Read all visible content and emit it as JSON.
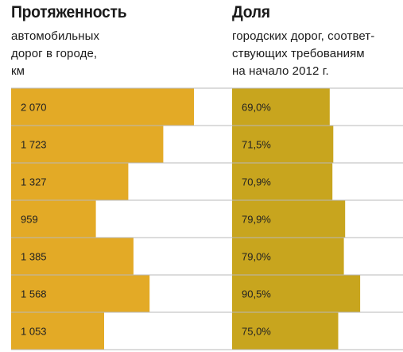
{
  "left_panel": {
    "title": "Протяженность",
    "subtitle": "автомобильных\nдорог в городе,\nкм"
  },
  "right_panel": {
    "title": "Доля",
    "subtitle": "городских дорог, соответ-\nствующих требованиям\nна начало 2012 г."
  },
  "colors": {
    "left_bar": "#E3AA26",
    "right_bar": "#C8A51E",
    "separator": "#B8B8B8"
  },
  "chart_data": [
    {
      "type": "bar",
      "orientation": "horizontal",
      "title": "Протяженность",
      "subtitle": "автомобильных дорог в городе, км",
      "values": [
        2070,
        1723,
        1327,
        959,
        1385,
        1568,
        1053
      ],
      "labels": [
        "2 070",
        "1 723",
        "1 327",
        "959",
        "1 385",
        "1 568",
        "1 053"
      ],
      "xlim": [
        0,
        2520
      ]
    },
    {
      "type": "bar",
      "orientation": "horizontal",
      "title": "Доля",
      "subtitle": "городских дорог, соответствующих требованиям на начало 2012 г.",
      "values": [
        69.0,
        71.5,
        70.9,
        79.9,
        79.0,
        90.5,
        75.0
      ],
      "labels": [
        "69,0%",
        "71,5%",
        "70,9%",
        "79,9%",
        "79,0%",
        "90,5%",
        "75,0%"
      ],
      "xlim": [
        0,
        100
      ]
    }
  ]
}
